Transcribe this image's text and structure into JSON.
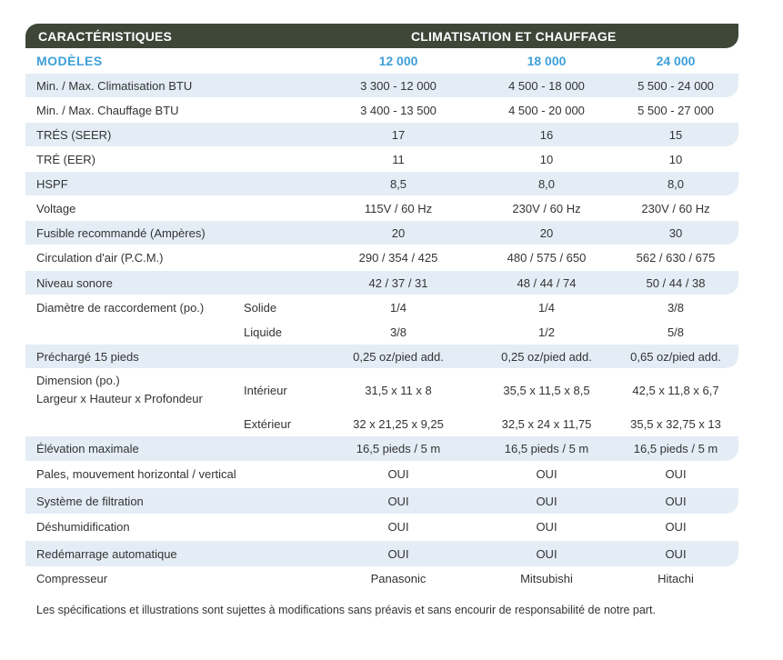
{
  "header": {
    "left_title": "CARACTÉRISTIQUES",
    "right_title": "CLIMATISATION ET CHAUFFAGE"
  },
  "models": {
    "label": "MODÈLES",
    "values": [
      "12 000",
      "18 000",
      "24 000"
    ]
  },
  "rows": [
    {
      "label": "Min. / Max. Climatisation BTU",
      "values": [
        "3 300 - 12 000",
        "4 500 - 18 000",
        "5 500 - 24 000"
      ]
    },
    {
      "label": "Min. / Max. Chauffage BTU",
      "values": [
        "3 400 - 13 500",
        "4 500 - 20 000",
        "5 500 - 27 000"
      ]
    },
    {
      "label": "TRÉS (SEER)",
      "values": [
        "17",
        "16",
        "15"
      ]
    },
    {
      "label": "TRÉ (EER)",
      "values": [
        "11",
        "10",
        "10"
      ]
    },
    {
      "label": "HSPF",
      "values": [
        "8,5",
        "8,0",
        "8,0"
      ]
    },
    {
      "label": "Voltage",
      "values": [
        "115V / 60 Hz",
        "230V / 60 Hz",
        "230V / 60 Hz"
      ]
    },
    {
      "label": "Fusible recommandé (Ampères)",
      "values": [
        "20",
        "20",
        "30"
      ]
    },
    {
      "label": "Circulation d'air (P.C.M.)",
      "values": [
        "290 / 354 / 425",
        "480 / 575 / 650",
        "562 / 630 / 675"
      ]
    },
    {
      "label": "Niveau sonore",
      "values": [
        "42 / 37 / 31",
        "48 / 44 / 74",
        "50 / 44 / 38"
      ]
    },
    {
      "label": "Diamètre de raccordement (po.)",
      "sub": "Solide",
      "values": [
        "1/4",
        "1/4",
        "3/8"
      ]
    },
    {
      "label": "",
      "sub": "Liquide",
      "values": [
        "3/8",
        "1/2",
        "5/8"
      ]
    },
    {
      "label": "Préchargé 15 pieds",
      "values": [
        "0,25 oz/pied add.",
        "0,25 oz/pied add.",
        "0,65 oz/pied add."
      ]
    },
    {
      "label": "Dimension (po.)",
      "label2": "Largeur x Hauteur x Profondeur",
      "sub": "Intérieur",
      "values": [
        "31,5 x 11 x 8",
        "35,5 x 11,5 x 8,5",
        "42,5 x 11,8 x 6,7"
      ]
    },
    {
      "label": "",
      "sub": "Extérieur",
      "values": [
        "32 x 21,25 x 9,25",
        "32,5 x 24 x 11,75",
        "35,5 x 32,75 x 13"
      ]
    },
    {
      "label": "Élévation maximale",
      "values": [
        "16,5 pieds / 5 m",
        "16,5 pieds / 5 m",
        "16,5 pieds / 5 m"
      ]
    },
    {
      "label": "Pales, mouvement horizontal / vertical",
      "values": [
        "OUI",
        "OUI",
        "OUI"
      ]
    },
    {
      "label": "Système de filtration",
      "values": [
        "OUI",
        "OUI",
        "OUI"
      ]
    },
    {
      "label": "Déshumidification",
      "values": [
        "OUI",
        "OUI",
        "OUI"
      ]
    },
    {
      "label": "Redémarrage automatique",
      "values": [
        "OUI",
        "OUI",
        "OUI"
      ]
    },
    {
      "label": "Compresseur",
      "values": [
        "Panasonic",
        "Mitsubishi",
        "Hitachi"
      ]
    }
  ],
  "footnote": "Les spécifications et illustrations sont sujettes à modifications sans préavis et sans encourir de responsabilité de notre part."
}
